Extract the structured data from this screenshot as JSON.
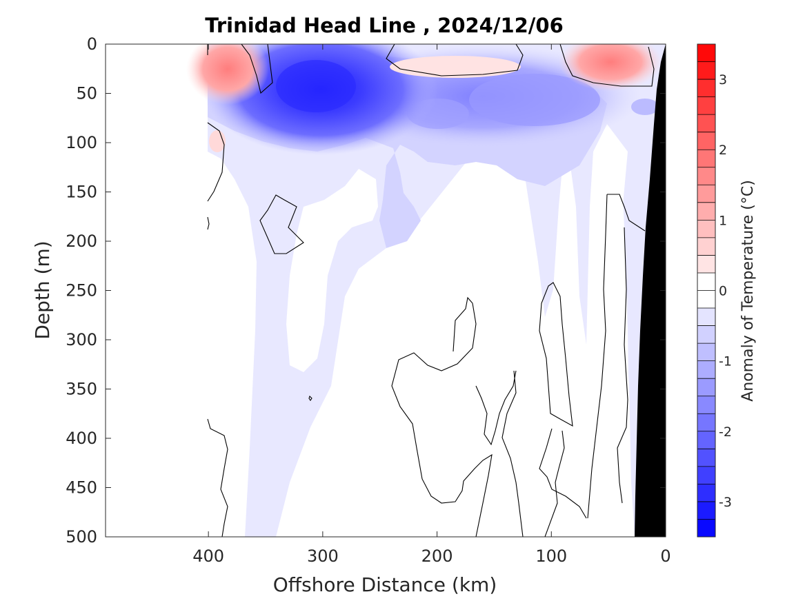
{
  "chart_data": {
    "type": "contour",
    "title": "Trinidad Head Line , 2024/12/06",
    "xlabel": "Offshore Distance (km)",
    "ylabel": "Depth (m)",
    "xlim": [
      490,
      0
    ],
    "ylim": [
      0,
      500
    ],
    "x_reversed": true,
    "y_reversed": true,
    "x_ticks": [
      400,
      300,
      200,
      100,
      0
    ],
    "y_ticks": [
      0,
      50,
      100,
      150,
      200,
      250,
      300,
      350,
      400,
      450,
      500
    ],
    "colorbar": {
      "label": "Anomaly of Temperature (°C)",
      "range": [
        -3.5,
        3.5
      ],
      "step": 0.25,
      "ticks": [
        3,
        2,
        1,
        0,
        -1,
        -2,
        -3
      ],
      "colormap": "blue-white-red",
      "negative_color": "#0000ff",
      "positive_color": "#ff0000",
      "zero_color": "#ffffff"
    },
    "data_extent_km": [
      0,
      400
    ],
    "bottom_mask_color": "#000000",
    "features": [
      {
        "sign": "negative",
        "anomaly": -2.0,
        "x_km": 305,
        "depth_m": 45
      },
      {
        "sign": "negative",
        "anomaly": -1.0,
        "x_km": 130,
        "depth_m": 50
      },
      {
        "sign": "negative",
        "anomaly": -0.75,
        "x_km": 190,
        "depth_m": 75
      },
      {
        "sign": "positive",
        "anomaly": 1.0,
        "x_km": 395,
        "depth_m": 30
      },
      {
        "sign": "positive",
        "anomaly": 0.9,
        "x_km": 45,
        "depth_m": 20
      },
      {
        "sign": "positive",
        "anomaly": 0.4,
        "x_km": 170,
        "depth_m": 25
      }
    ]
  }
}
